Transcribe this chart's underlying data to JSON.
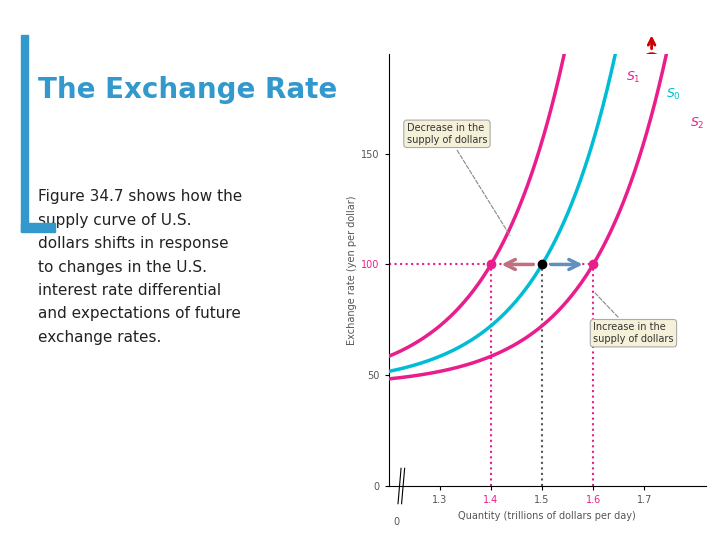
{
  "title": "The Exchange Rate",
  "xlabel": "Quantity (trillions of dollars per day)",
  "ylabel": "Exchange rate (yen per dollar)",
  "xlim": [
    1.2,
    1.82
  ],
  "ylim": [
    0,
    195
  ],
  "yticks": [
    0,
    50,
    100,
    150
  ],
  "xticks": [
    1.3,
    1.4,
    1.5,
    1.6,
    1.7
  ],
  "s0_color": "#00BCD4",
  "s1_color": "#E91E8C",
  "s2_color": "#E91E8C",
  "annotation_box_color": "#F5F0D8",
  "decrease_label": "Decrease in the\nsupply of dollars",
  "increase_label": "Increase in the\nsupply of dollars",
  "dotted_color_pink": "#E91E8C",
  "dotted_color_dark": "#555555",
  "bg_color": "#FFFFFF",
  "title_color": "#3399CC",
  "border_color": "#3399CC",
  "body_text_color": "#222222",
  "desc_text": "Figure 34.7 shows how the\nsupply curve of U.S.\ndollars shifts in response\nto changes in the U.S.\ninterest rate differential\nand expectations of future\nexchange rates."
}
